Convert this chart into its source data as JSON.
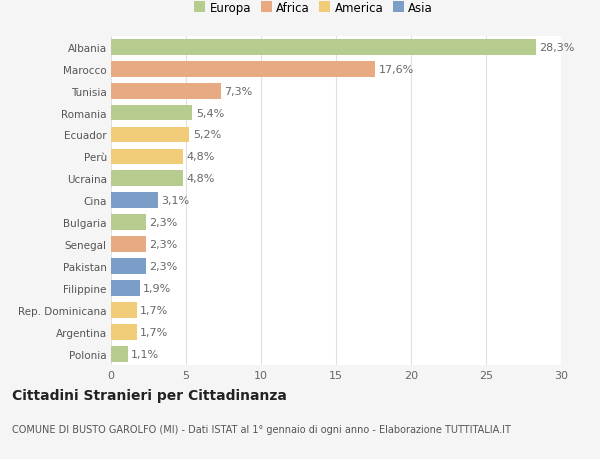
{
  "countries": [
    "Albania",
    "Marocco",
    "Tunisia",
    "Romania",
    "Ecuador",
    "Perù",
    "Ucraina",
    "Cina",
    "Bulgaria",
    "Senegal",
    "Pakistan",
    "Filippine",
    "Rep. Dominicana",
    "Argentina",
    "Polonia"
  ],
  "values": [
    28.3,
    17.6,
    7.3,
    5.4,
    5.2,
    4.8,
    4.8,
    3.1,
    2.3,
    2.3,
    2.3,
    1.9,
    1.7,
    1.7,
    1.1
  ],
  "labels": [
    "28,3%",
    "17,6%",
    "7,3%",
    "5,4%",
    "5,2%",
    "4,8%",
    "4,8%",
    "3,1%",
    "2,3%",
    "2,3%",
    "2,3%",
    "1,9%",
    "1,7%",
    "1,7%",
    "1,1%"
  ],
  "colors": [
    "#b5cc8e",
    "#e8aa82",
    "#e8aa82",
    "#b5cc8e",
    "#f0cc78",
    "#f0cc78",
    "#b5cc8e",
    "#7b9ec8",
    "#b5cc8e",
    "#e8aa82",
    "#7b9ec8",
    "#7b9ec8",
    "#f0cc78",
    "#f0cc78",
    "#b5cc8e"
  ],
  "legend_labels": [
    "Europa",
    "Africa",
    "America",
    "Asia"
  ],
  "legend_colors": [
    "#b5cc8e",
    "#e8aa82",
    "#f0cc78",
    "#7b9ec8"
  ],
  "title": "Cittadini Stranieri per Cittadinanza",
  "subtitle": "COMUNE DI BUSTO GAROLFO (MI) - Dati ISTAT al 1° gennaio di ogni anno - Elaborazione TUTTITALIA.IT",
  "xlim": [
    0,
    30
  ],
  "xticks": [
    0,
    5,
    10,
    15,
    20,
    25,
    30
  ],
  "bg_color": "#f5f5f5",
  "plot_bg_color": "#ffffff",
  "grid_color": "#e0e0e0",
  "bar_height": 0.72,
  "title_fontsize": 10,
  "subtitle_fontsize": 7,
  "label_fontsize": 8,
  "tick_fontsize": 8,
  "legend_fontsize": 8.5,
  "ytick_fontsize": 7.5
}
